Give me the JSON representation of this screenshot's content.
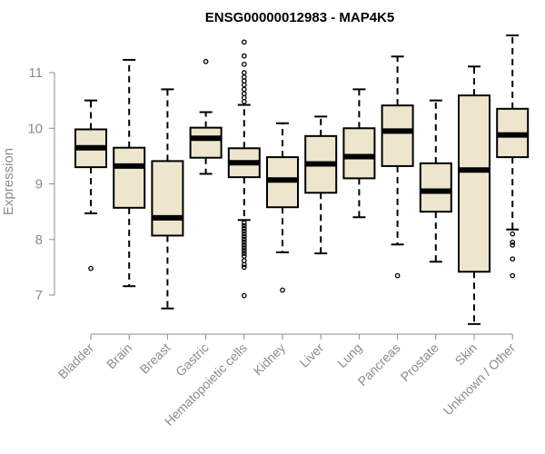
{
  "chart_data": {
    "type": "boxplot",
    "title": "ENSG00000012983 - MAP4K5",
    "ylabel": "Expression",
    "xlabel": "",
    "ylim": [
      6.3,
      11.9
    ],
    "yticks": [
      7,
      8,
      9,
      10,
      11
    ],
    "box_fill": "#ede6cc",
    "categories": [
      "Bladder",
      "Brain",
      "Breast",
      "Gastric",
      "Hematopoietic cells",
      "Kidney",
      "Liver",
      "Lung",
      "Pancreas",
      "Prostate",
      "Skin",
      "Unknown / Other"
    ],
    "boxes": [
      {
        "whisker_low": 8.47,
        "q1": 9.3,
        "median": 9.65,
        "q3": 9.98,
        "whisker_high": 10.5,
        "outliers": [
          7.48
        ]
      },
      {
        "whisker_low": 7.16,
        "q1": 8.57,
        "median": 9.32,
        "q3": 9.65,
        "whisker_high": 11.23,
        "outliers": []
      },
      {
        "whisker_low": 6.76,
        "q1": 8.07,
        "median": 8.39,
        "q3": 9.41,
        "whisker_high": 10.7,
        "outliers": []
      },
      {
        "whisker_low": 9.18,
        "q1": 9.47,
        "median": 9.82,
        "q3": 10.01,
        "whisker_high": 10.29,
        "outliers": [
          11.2
        ]
      },
      {
        "whisker_low": 8.35,
        "q1": 9.12,
        "median": 9.38,
        "q3": 9.64,
        "whisker_high": 10.42,
        "outliers": [
          6.99,
          7.5,
          7.55,
          7.62,
          7.7,
          7.75,
          7.8,
          7.85,
          7.9,
          7.95,
          8.0,
          8.05,
          8.1,
          8.15,
          8.2,
          8.25,
          8.3,
          10.48,
          10.55,
          10.62,
          10.7,
          10.78,
          10.85,
          10.92,
          11.0,
          11.15,
          11.3,
          11.55
        ]
      },
      {
        "whisker_low": 7.77,
        "q1": 8.58,
        "median": 9.07,
        "q3": 9.48,
        "whisker_high": 10.09,
        "outliers": [
          7.09
        ]
      },
      {
        "whisker_low": 7.75,
        "q1": 8.84,
        "median": 9.36,
        "q3": 9.86,
        "whisker_high": 10.21,
        "outliers": []
      },
      {
        "whisker_low": 8.4,
        "q1": 9.1,
        "median": 9.49,
        "q3": 10.0,
        "whisker_high": 10.7,
        "outliers": []
      },
      {
        "whisker_low": 7.91,
        "q1": 9.32,
        "median": 9.95,
        "q3": 10.41,
        "whisker_high": 11.29,
        "outliers": [
          7.35
        ]
      },
      {
        "whisker_low": 7.6,
        "q1": 8.5,
        "median": 8.87,
        "q3": 9.37,
        "whisker_high": 10.5,
        "outliers": []
      },
      {
        "whisker_low": 6.48,
        "q1": 7.42,
        "median": 9.25,
        "q3": 10.59,
        "whisker_high": 11.11,
        "outliers": []
      },
      {
        "whisker_low": 8.18,
        "q1": 9.48,
        "median": 9.88,
        "q3": 10.35,
        "whisker_high": 11.67,
        "outliers": [
          7.35,
          7.65,
          7.9,
          7.95,
          8.1
        ]
      }
    ]
  }
}
